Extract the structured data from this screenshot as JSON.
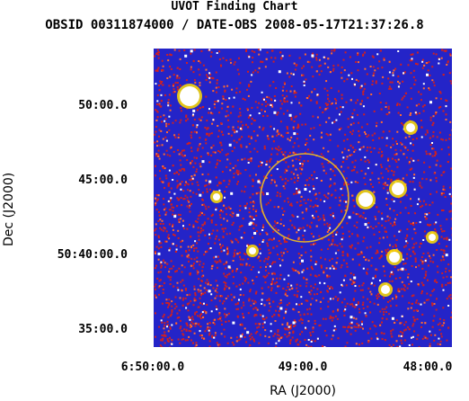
{
  "header": {
    "title": "UVOT Finding Chart",
    "subtitle": "OBSID 00311874000 / DATE-OBS 2008-05-17T21:37:26.8"
  },
  "axes": {
    "x_title": "RA (J2000)",
    "y_title": "Dec (J2000)",
    "x_ticks": [
      "6:50:00.0",
      "49:00.0",
      "48:00.0"
    ],
    "y_ticks": [
      "50:00.0",
      "45:00.0",
      "50:40:00.0",
      "35:00.0"
    ]
  },
  "image": {
    "background_color": "#2424c8",
    "noise_color": "#d02020",
    "star_color": "#ffffff",
    "halo_color": "#ffe000",
    "marker_color": "#e0b030"
  }
}
